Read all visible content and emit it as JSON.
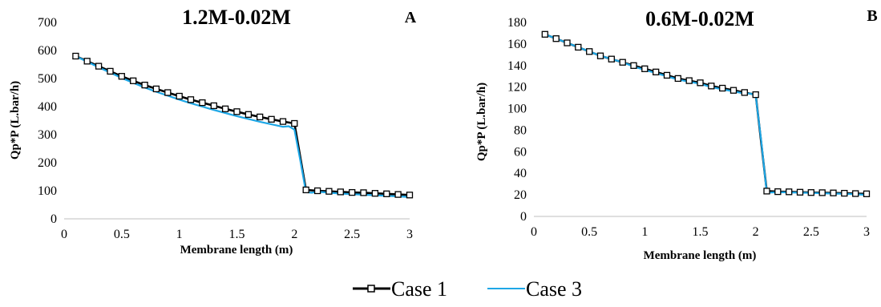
{
  "figure": {
    "legend": [
      {
        "label": "Case 1",
        "color": "#000000",
        "marker": "square"
      },
      {
        "label": "Case 3",
        "color": "#1ea7e6",
        "marker": "none"
      }
    ]
  },
  "chart_data": [
    {
      "type": "line",
      "title": "1.2M-0.02M",
      "panel_letter": "A",
      "xlabel": "Membrane length (m)",
      "ylabel": "Qp*P (L.bar/h)",
      "xlim": [
        0,
        3
      ],
      "ylim": [
        0,
        700
      ],
      "xticks": [
        "0",
        "0.5",
        "1",
        "1.5",
        "2",
        "2.5",
        "3"
      ],
      "yticks": [
        "0",
        "100",
        "200",
        "300",
        "400",
        "500",
        "600",
        "700"
      ],
      "grid": false,
      "legend_position": "bottom",
      "series": [
        {
          "name": "Case 1",
          "color": "#000000",
          "marker": "square",
          "x": [
            0.1,
            0.2,
            0.3,
            0.4,
            0.5,
            0.6,
            0.7,
            0.8,
            0.9,
            1.0,
            1.1,
            1.2,
            1.3,
            1.4,
            1.5,
            1.6,
            1.7,
            1.8,
            1.9,
            2.0,
            2.1,
            2.2,
            2.3,
            2.4,
            2.5,
            2.6,
            2.7,
            2.8,
            2.9,
            3.0
          ],
          "values": [
            580,
            562,
            544,
            526,
            508,
            492,
            477,
            463,
            450,
            437,
            425,
            414,
            403,
            392,
            382,
            372,
            363,
            355,
            347,
            340,
            103,
            100,
            98,
            96,
            94,
            93,
            91,
            89,
            87,
            85
          ]
        },
        {
          "name": "Case 3",
          "color": "#1ea7e6",
          "marker": "none",
          "x": [
            0.1,
            0.2,
            0.3,
            0.4,
            0.5,
            0.6,
            0.7,
            0.8,
            0.9,
            1.0,
            1.1,
            1.2,
            1.3,
            1.4,
            1.5,
            1.6,
            1.7,
            1.8,
            1.9,
            1.95,
            2.0,
            2.05,
            2.1,
            2.15,
            2.2,
            2.3,
            2.4,
            2.5,
            2.6,
            2.7,
            2.8,
            2.9,
            3.0
          ],
          "values": [
            580,
            560,
            540,
            521,
            502,
            485,
            468,
            453,
            439,
            425,
            412,
            400,
            388,
            377,
            366,
            356,
            346,
            337,
            328,
            330,
            318,
            210,
            95,
            93,
            97,
            93,
            90,
            88,
            86,
            84,
            82,
            80,
            78
          ]
        }
      ]
    },
    {
      "type": "line",
      "title": "0.6M-0.02M",
      "panel_letter": "B",
      "xlabel": "Membrane length (m)",
      "ylabel": "Qp*P (L.bar/h)",
      "xlim": [
        0,
        3
      ],
      "ylim": [
        0,
        180
      ],
      "xticks": [
        "0",
        "0.5",
        "1",
        "1.5",
        "2",
        "2.5",
        "3"
      ],
      "yticks": [
        "0",
        "20",
        "40",
        "60",
        "80",
        "100",
        "120",
        "140",
        "160",
        "180"
      ],
      "grid": false,
      "legend_position": "bottom",
      "series": [
        {
          "name": "Case 1",
          "color": "#000000",
          "marker": "square",
          "x": [
            0.1,
            0.2,
            0.3,
            0.4,
            0.5,
            0.6,
            0.7,
            0.8,
            0.9,
            1.0,
            1.1,
            1.2,
            1.3,
            1.4,
            1.5,
            1.6,
            1.7,
            1.8,
            1.9,
            2.0,
            2.1,
            2.2,
            2.3,
            2.4,
            2.5,
            2.6,
            2.7,
            2.8,
            2.9,
            3.0
          ],
          "values": [
            169,
            165,
            161,
            157,
            153,
            149,
            146,
            143,
            140,
            137,
            134,
            131,
            128,
            126,
            124,
            121,
            119,
            117,
            115,
            113,
            23.5,
            23,
            22.8,
            22.5,
            22.2,
            22,
            21.8,
            21.5,
            21.2,
            21
          ]
        },
        {
          "name": "Case 3",
          "color": "#1ea7e6",
          "marker": "none",
          "x": [
            0.1,
            0.2,
            0.3,
            0.4,
            0.5,
            0.6,
            0.7,
            0.8,
            0.9,
            1.0,
            1.1,
            1.2,
            1.3,
            1.4,
            1.5,
            1.6,
            1.7,
            1.8,
            1.9,
            1.95,
            2.0,
            2.05,
            2.1,
            2.2,
            2.3,
            2.4,
            2.5,
            2.6,
            2.7,
            2.8,
            2.9,
            3.0
          ],
          "values": [
            169,
            165,
            161,
            157,
            153,
            149,
            146,
            143,
            139,
            136,
            133,
            130,
            127,
            125,
            123,
            120,
            118,
            116,
            114,
            114,
            112,
            70,
            22,
            22.5,
            22.3,
            22,
            21.8,
            21.5,
            21.2,
            21,
            20.5,
            20
          ]
        }
      ]
    }
  ]
}
